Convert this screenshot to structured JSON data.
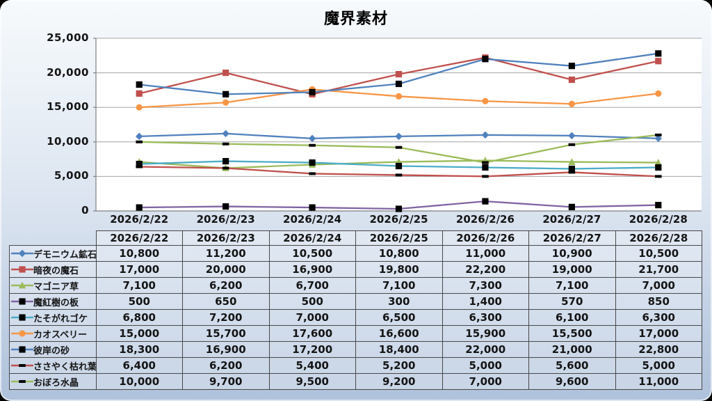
{
  "title": "魔界素材",
  "chart_data": {
    "type": "line",
    "title": "魔界素材",
    "categories": [
      "2026/2/22",
      "2026/2/23",
      "2026/2/24",
      "2026/2/25",
      "2026/2/26",
      "2026/2/27",
      "2026/2/28"
    ],
    "series": [
      {
        "name": "デモニウム鉱石",
        "values": [
          10800,
          11200,
          10500,
          10800,
          11000,
          10900,
          10500
        ],
        "color": "#4F81BD",
        "marker": "diamond",
        "marker_color": "#4F81BD"
      },
      {
        "name": "暗夜の魔石",
        "values": [
          17000,
          20000,
          16900,
          19800,
          22200,
          19000,
          21700
        ],
        "color": "#C0504D",
        "marker": "square",
        "marker_color": "#C0504D"
      },
      {
        "name": "マゴニア草",
        "values": [
          7100,
          6200,
          6700,
          7100,
          7300,
          7100,
          7000
        ],
        "color": "#9BBB59",
        "marker": "triangle",
        "marker_color": "#9BBB59"
      },
      {
        "name": "魔紅樹の板",
        "values": [
          500,
          650,
          500,
          300,
          1400,
          570,
          850
        ],
        "color": "#8064A2",
        "marker": "square",
        "marker_color": "#000000"
      },
      {
        "name": "たそがれゴケ",
        "values": [
          6800,
          7200,
          7000,
          6500,
          6300,
          6100,
          6300
        ],
        "color": "#4BACC6",
        "marker": "square",
        "marker_color": "#000000"
      },
      {
        "name": "カオスベリー",
        "values": [
          15000,
          15700,
          17600,
          16600,
          15900,
          15500,
          17000
        ],
        "color": "#F79646",
        "marker": "circle",
        "marker_color": "#F79646"
      },
      {
        "name": "彼岸の砂",
        "values": [
          18300,
          16900,
          17200,
          18400,
          22000,
          21000,
          22800
        ],
        "color": "#4F81BD",
        "marker": "square",
        "marker_color": "#000000"
      },
      {
        "name": "ささやく枯れ葉",
        "values": [
          6400,
          6200,
          5400,
          5200,
          5000,
          5600,
          5000
        ],
        "color": "#C0504D",
        "marker": "dash",
        "marker_color": "#000000"
      },
      {
        "name": "おぼろ水晶",
        "values": [
          10000,
          9700,
          9500,
          9200,
          7000,
          9600,
          11000
        ],
        "color": "#9BBB59",
        "marker": "dash",
        "marker_color": "#000000"
      }
    ],
    "ylim": [
      0,
      25000
    ],
    "ytick_step": 5000,
    "ytick_labels": [
      "0",
      "5,000",
      "10,000",
      "15,000",
      "20,000",
      "25,000"
    ],
    "grid": true,
    "legend_position": "data-table-left-column",
    "plot_bg_color": "#FFFFFF",
    "gridline_color": "#A3A3A3",
    "axis_color": "#7F7F7F"
  }
}
